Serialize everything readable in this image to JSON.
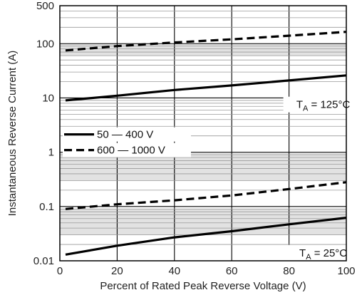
{
  "chart_data": {
    "type": "line",
    "xlabel": "Percent of Rated Peak Reverse Voltage (V)",
    "ylabel": "Instantaneous Reverse Current (A)",
    "xlim": [
      0,
      100
    ],
    "ylim": [
      0.01,
      500
    ],
    "yscale": "log",
    "grid": true,
    "x_ticks": [
      {
        "value": 0,
        "label": "0"
      },
      {
        "value": 20,
        "label": "20"
      },
      {
        "value": 40,
        "label": "40"
      },
      {
        "value": 60,
        "label": "60"
      },
      {
        "value": 80,
        "label": "80"
      },
      {
        "value": 100,
        "label": "100"
      }
    ],
    "y_ticks": [
      {
        "value": 0.01,
        "label": "0.01"
      },
      {
        "value": 0.1,
        "label": "0.1"
      },
      {
        "value": 1,
        "label": "1"
      },
      {
        "value": 10,
        "label": "10"
      },
      {
        "value": 100,
        "label": "100"
      },
      {
        "value": 500,
        "label": "500"
      }
    ],
    "legend": {
      "position": "left-middle",
      "entries": [
        {
          "label": "50 — 400 V",
          "style": "solid"
        },
        {
          "label": "600 — 1000 V",
          "style": "dashed"
        }
      ]
    },
    "annotations": [
      {
        "main": "T",
        "sub": "A",
        "rest": " = 125°C",
        "x": 80,
        "y": 6.5
      },
      {
        "main": "T",
        "sub": "A",
        "rest": " = 25°C",
        "x": 80,
        "y": 0.012
      }
    ],
    "series": [
      {
        "style": "dashed",
        "color": "#000000",
        "x": [
          2,
          20,
          40,
          60,
          80,
          100
        ],
        "y": [
          75,
          90,
          105,
          120,
          140,
          165
        ]
      },
      {
        "style": "solid",
        "color": "#000000",
        "x": [
          2,
          20,
          40,
          60,
          80,
          100
        ],
        "y": [
          9,
          11,
          14,
          17,
          21,
          26
        ]
      },
      {
        "style": "dashed",
        "color": "#000000",
        "x": [
          2,
          20,
          40,
          60,
          80,
          100
        ],
        "y": [
          0.09,
          0.11,
          0.13,
          0.16,
          0.21,
          0.28
        ]
      },
      {
        "style": "solid",
        "color": "#000000",
        "x": [
          2,
          20,
          40,
          60,
          80,
          100
        ],
        "y": [
          0.013,
          0.019,
          0.027,
          0.035,
          0.047,
          0.062
        ]
      }
    ]
  }
}
